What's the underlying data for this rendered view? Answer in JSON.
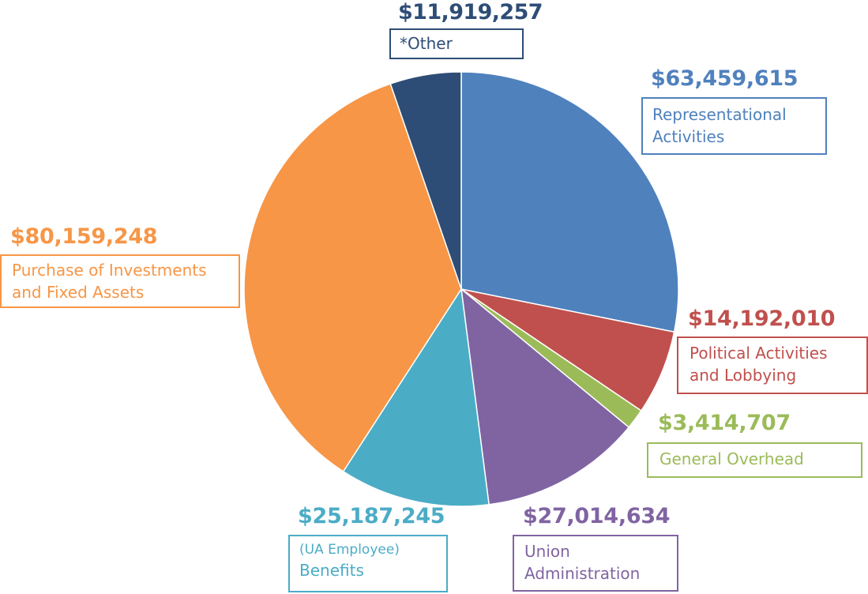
{
  "chart_data": {
    "type": "pie",
    "start_angle_deg": 0,
    "direction": "clockwise",
    "slices": [
      {
        "key": "rep",
        "value": 63459615,
        "value_label": "$63,459,615",
        "label_lines": [
          "Representational",
          "Activities"
        ],
        "color": "#4F81BD"
      },
      {
        "key": "pol",
        "value": 14192010,
        "value_label": "$14,192,010",
        "label_lines": [
          "Political Activities",
          "and Lobbying"
        ],
        "color": "#C0504D"
      },
      {
        "key": "gen",
        "value": 3414707,
        "value_label": "$3,414,707",
        "label_lines": [
          "General Overhead"
        ],
        "color": "#9BBB59"
      },
      {
        "key": "uni",
        "value": 27014634,
        "value_label": "$27,014,634",
        "label_lines": [
          "Union",
          "Administration"
        ],
        "color": "#8064A2"
      },
      {
        "key": "ben",
        "value": 25187245,
        "value_label": "$25,187,245",
        "label_prefix": "(UA Employee)",
        "label_lines": [
          "Benefits"
        ],
        "color": "#4BACC6"
      },
      {
        "key": "inv",
        "value": 80159248,
        "value_label": "$80,159,248",
        "label_lines": [
          "Purchase of Investments",
          "and Fixed Assets"
        ],
        "color": "#F79646"
      },
      {
        "key": "oth",
        "value": 11919257,
        "value_label": "$11,919,257",
        "label_lines": [
          "*Other"
        ],
        "color": "#2E4D76"
      }
    ]
  }
}
